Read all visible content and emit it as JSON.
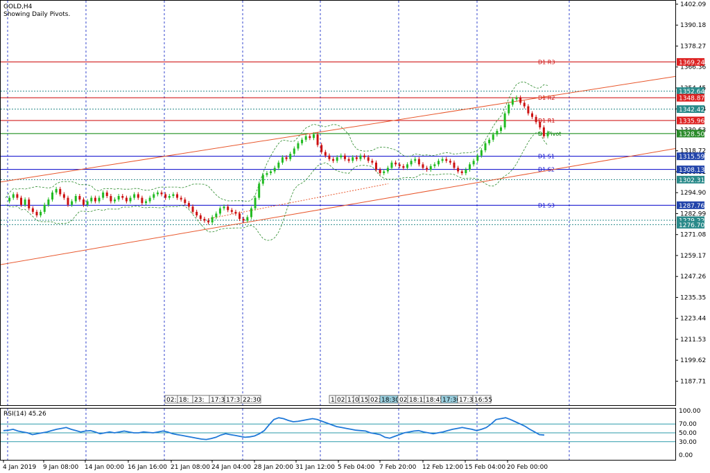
{
  "window": {
    "symbol_title": "GOLD,H4",
    "subtitle": "Showing Daily Pivots."
  },
  "chart_data": {
    "type": "candlestick",
    "symbol": "GOLD",
    "timeframe": "H4",
    "y_axis": {
      "min": 1180.0,
      "max": 1402.09,
      "ticks": [
        "1402.09",
        "1390.18",
        "1378.27",
        "1366.36",
        "1354.45",
        "1342.54",
        "1330.63",
        "1318.72",
        "1306.81",
        "1294.90",
        "1282.99",
        "1271.08",
        "1259.17",
        "1247.26",
        "1235.35",
        "1223.44",
        "1211.53",
        "1199.62",
        "1187.71"
      ]
    },
    "x_axis": {
      "labels": [
        "4 Jan 2019",
        "9 Jan 08:00",
        "14 Jan 00:00",
        "16 Jan 16:00",
        "21 Jan 08:00",
        "24 Jan 04:00",
        "28 Jan 20:00",
        "31 Jan 12:00",
        "5 Feb 04:00",
        "7 Feb 20:00",
        "12 Feb 12:00",
        "15 Feb 04:00",
        "20 Feb 00:00"
      ]
    },
    "pivots": [
      {
        "name": "D1 R3",
        "value": 1369.24,
        "color": "#cc0000"
      },
      {
        "name": "D1 R2",
        "value": 1348.87,
        "color": "#cc0000"
      },
      {
        "name": "D1 R1",
        "value": 1335.96,
        "color": "#cc0000"
      },
      {
        "name": "D1 Pivot",
        "value": 1328.5,
        "color": "#008000"
      },
      {
        "name": "D1 S1",
        "value": 1315.59,
        "color": "#0000cc"
      },
      {
        "name": "D1 S2",
        "value": 1308.13,
        "color": "#0000cc"
      },
      {
        "name": "D1 S3",
        "value": 1287.76,
        "color": "#0000cc"
      }
    ],
    "dotted_levels": [
      {
        "value": 1352.64,
        "label": "1352.64",
        "color": "#2a8a8a"
      },
      {
        "value": 1342.42,
        "label": "1342.42",
        "color": "#2a8a8a"
      },
      {
        "value": 1302.31,
        "label": "1302.31",
        "color": "#2a8a8a"
      },
      {
        "value": 1279.22,
        "label": "1279.22",
        "color": "#2a8a8a"
      },
      {
        "value": 1276.7,
        "label": "1276.70",
        "color": "#2a8a8a"
      }
    ],
    "price_tags": [
      {
        "label": "1369.24",
        "value": 1369.24,
        "color": "#dd2222"
      },
      {
        "label": "1352.64",
        "value": 1352.64,
        "color": "#2a8a8a"
      },
      {
        "label": "1348.87",
        "value": 1348.87,
        "color": "#dd2222"
      },
      {
        "label": "1342.42",
        "value": 1342.42,
        "color": "#2a8a8a"
      },
      {
        "label": "1335.96",
        "value": 1335.96,
        "color": "#dd2222"
      },
      {
        "label": "1328.50",
        "value": 1328.5,
        "color": "#2a8a2a"
      },
      {
        "label": "1315.59",
        "value": 1315.59,
        "color": "#2244aa"
      },
      {
        "label": "1308.13",
        "value": 1308.13,
        "color": "#2244aa"
      },
      {
        "label": "1302.31",
        "value": 1302.31,
        "color": "#2a8a8a"
      },
      {
        "label": "1287.76",
        "value": 1287.76,
        "color": "#2244aa"
      },
      {
        "label": "1279.22",
        "value": 1279.22,
        "color": "#2a8a8a"
      },
      {
        "label": "1276.70",
        "value": 1276.7,
        "color": "#2a8a8a"
      }
    ],
    "candles": [
      1290,
      1292,
      1294,
      1292,
      1288,
      1291,
      1286,
      1284,
      1282,
      1284,
      1288,
      1291,
      1295,
      1297,
      1294,
      1292,
      1288,
      1290,
      1293,
      1291,
      1288,
      1290,
      1292,
      1290,
      1292,
      1295,
      1293,
      1290,
      1291,
      1293,
      1292,
      1290,
      1292,
      1294,
      1292,
      1289,
      1290,
      1292,
      1294,
      1295,
      1294,
      1292,
      1293,
      1294,
      1292,
      1291,
      1289,
      1287,
      1284,
      1282,
      1280,
      1279,
      1278,
      1281,
      1283,
      1286,
      1287,
      1285,
      1284,
      1283,
      1280,
      1279,
      1281,
      1286,
      1292,
      1300,
      1305,
      1306,
      1307,
      1309,
      1312,
      1315,
      1314,
      1317,
      1320,
      1323,
      1325,
      1327,
      1326,
      1328,
      1322,
      1318,
      1316,
      1314,
      1313,
      1315,
      1316,
      1314,
      1313,
      1315,
      1314,
      1316,
      1315,
      1313,
      1312,
      1308,
      1306,
      1307,
      1309,
      1312,
      1311,
      1310,
      1309,
      1311,
      1313,
      1314,
      1311,
      1309,
      1308,
      1310,
      1311,
      1313,
      1314,
      1313,
      1312,
      1309,
      1307,
      1306,
      1308,
      1311,
      1313,
      1316,
      1319,
      1323,
      1325,
      1328,
      1330,
      1332,
      1340,
      1345,
      1348,
      1349,
      1346,
      1344,
      1340,
      1338,
      1335,
      1332,
      1327,
      1329
    ],
    "rsi": {
      "label": "RSI(14) 45.26",
      "levels": [
        70,
        50,
        30
      ],
      "ticks": [
        "100.00",
        "70.00",
        "50.00",
        "30.00",
        "0.00"
      ],
      "values": [
        55,
        56,
        58,
        54,
        52,
        50,
        46,
        48,
        50,
        52,
        55,
        58,
        60,
        62,
        58,
        55,
        52,
        54,
        55,
        52,
        48,
        50,
        52,
        50,
        52,
        54,
        52,
        50,
        50,
        52,
        51,
        50,
        52,
        54,
        52,
        48,
        46,
        44,
        42,
        40,
        38,
        36,
        35,
        37,
        40,
        45,
        48,
        46,
        44,
        42,
        40,
        41,
        43,
        48,
        55,
        68,
        80,
        84,
        82,
        78,
        75,
        76,
        78,
        80,
        82,
        80,
        76,
        72,
        68,
        64,
        62,
        60,
        58,
        56,
        55,
        54,
        50,
        48,
        46,
        40,
        38,
        42,
        46,
        50,
        52,
        54,
        55,
        52,
        50,
        48,
        50,
        52,
        55,
        58,
        60,
        62,
        60,
        58,
        55,
        58,
        62,
        70,
        80,
        82,
        84,
        80,
        75,
        70,
        65,
        58,
        52,
        46,
        45
      ]
    }
  },
  "time_boxes_left": [
    "02:",
    "18:",
    "23:",
    "17:3",
    "17:3",
    "22:30"
  ],
  "time_boxes_right": [
    "1",
    "02:",
    "17",
    "0",
    "15",
    "02:",
    "18:30",
    "02:",
    "18:15",
    "18:45",
    "17:30",
    "17:30",
    "16:55"
  ]
}
